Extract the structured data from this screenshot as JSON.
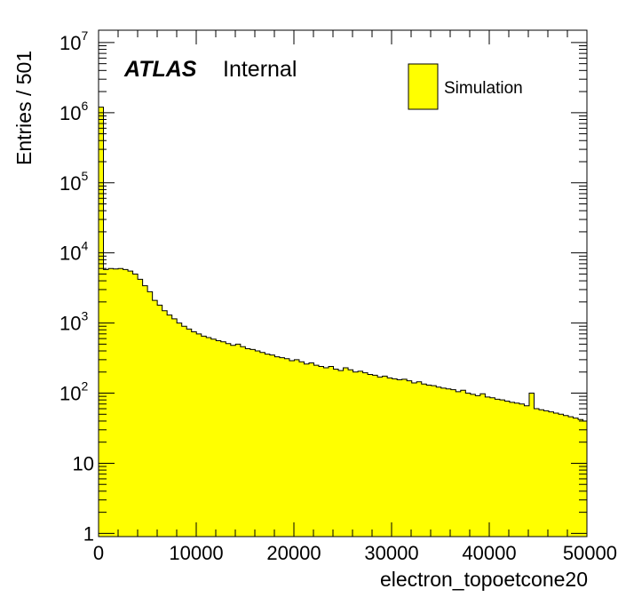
{
  "chart_data": {
    "type": "bar",
    "xlabel": "electron_topoetcone20",
    "ylabel": "Entries / 501",
    "annotation": {
      "experiment": "ATLAS",
      "status": "Internal"
    },
    "legend": {
      "entries": [
        "Simulation"
      ],
      "placement": "top-right"
    },
    "fill_color": "#ffff00",
    "line_color": "#000000",
    "xlim": [
      0,
      50000
    ],
    "ylim": [
      0.9,
      15000000
    ],
    "yscale": "log",
    "bin_width": 501,
    "x_ticks": [
      0,
      10000,
      20000,
      30000,
      40000,
      50000
    ],
    "x_tick_labels": [
      "0",
      "10000",
      "20000",
      "30000",
      "40000",
      "50000"
    ],
    "y_ticks": [
      {
        "value": 1,
        "base": "1",
        "exp": ""
      },
      {
        "value": 10,
        "base": "10",
        "exp": ""
      },
      {
        "value": 100,
        "base": "10",
        "exp": "2"
      },
      {
        "value": 1000,
        "base": "10",
        "exp": "3"
      },
      {
        "value": 10000,
        "base": "10",
        "exp": "4"
      },
      {
        "value": 100000,
        "base": "10",
        "exp": "5"
      },
      {
        "value": 1000000,
        "base": "10",
        "exp": "6"
      },
      {
        "value": 10000000,
        "base": "10",
        "exp": "7"
      }
    ],
    "series": [
      {
        "values": [
          1200000,
          5800,
          6000,
          5900,
          6000,
          5800,
          5500,
          5000,
          4200,
          3400,
          2800,
          2100,
          1800,
          1500,
          1300,
          1150,
          1000,
          900,
          820,
          750,
          700,
          650,
          620,
          590,
          560,
          540,
          510,
          480,
          500,
          460,
          430,
          420,
          400,
          380,
          360,
          350,
          330,
          320,
          310,
          290,
          300,
          280,
          260,
          270,
          250,
          240,
          230,
          240,
          220,
          210,
          230,
          215,
          200,
          205,
          195,
          185,
          180,
          170,
          175,
          165,
          160,
          155,
          158,
          150,
          140,
          145,
          135,
          130,
          128,
          122,
          118,
          115,
          112,
          105,
          110,
          100,
          96,
          92,
          98,
          88,
          86,
          82,
          80,
          77,
          74,
          72,
          70,
          66,
          100,
          60,
          58,
          56,
          54,
          52,
          50,
          48,
          46,
          44,
          42,
          40
        ]
      }
    ]
  }
}
